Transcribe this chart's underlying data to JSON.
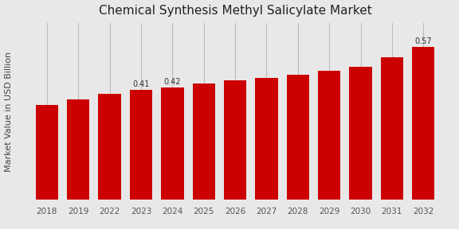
{
  "title": "Chemical Synthesis Methyl Salicylate Market",
  "ylabel": "Market Value in USD Billion",
  "categories": [
    "2018",
    "2019",
    "2022",
    "2023",
    "2024",
    "2025",
    "2026",
    "2027",
    "2028",
    "2029",
    "2030",
    "2031",
    "2032"
  ],
  "values": [
    0.355,
    0.375,
    0.395,
    0.41,
    0.42,
    0.435,
    0.445,
    0.455,
    0.465,
    0.48,
    0.495,
    0.53,
    0.57
  ],
  "bar_color": "#cc0000",
  "labeled_indices": [
    3,
    4,
    12
  ],
  "labels": [
    "0.41",
    "0.42",
    "0.57"
  ],
  "background_color": "#e8e8e8",
  "ylim": [
    0,
    0.66
  ],
  "title_fontsize": 11,
  "ylabel_fontsize": 8,
  "tick_fontsize": 7.5,
  "grid_color": "#bbbbbb",
  "bar_width": 0.72
}
